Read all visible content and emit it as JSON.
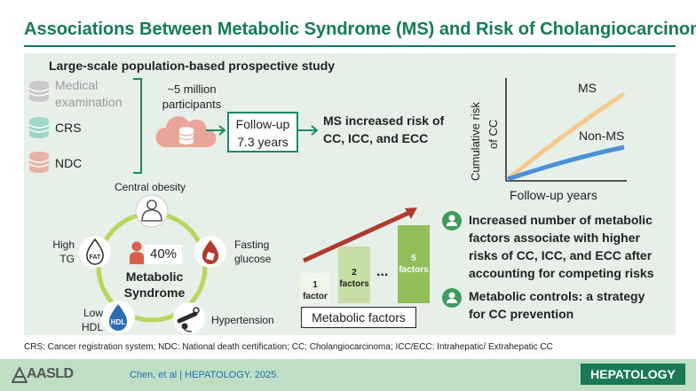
{
  "title": "Associations Between Metabolic Syndrome (MS) and Risk of Cholangiocarcinoma",
  "study": {
    "label": "Large-scale population-based prospective study",
    "sources": [
      "Medical examination",
      "CRS",
      "NDC"
    ],
    "participants": "~5 million participants",
    "followup": "Follow-up 7.3 years",
    "finding_line1": "MS increased risk of",
    "finding_line2": "CC, ICC, and ECC"
  },
  "chart": {
    "ylabel_line1": "Cumulative risk",
    "ylabel_line2": "of CC",
    "xlabel": "Follow-up years",
    "series_ms": "MS",
    "series_non_ms": "Non-MS",
    "color_ms": "#f3c98c",
    "color_non_ms": "#4a90d9"
  },
  "metabolic": {
    "components": [
      "Central obesity",
      "Fasting glucose",
      "Hypertension",
      "Low HDL",
      "High TG"
    ],
    "percent": "40%",
    "center_label": "Metabolic Syndrome",
    "hdl_icon_text": "HDL",
    "fat_icon_text": "FAT"
  },
  "factors": {
    "bars": [
      "1 factor",
      "2 factors",
      "...",
      "5 factors"
    ],
    "box_label": "Metabolic factors"
  },
  "outcomes": [
    "Increased number of metabolic factors associate with higher risks of CC, ICC, and ECC after accounting for competing risks",
    "Metabolic controls: a strategy for CC prevention"
  ],
  "footnote": "CRS: Cancer registration system; NDC: National death certification; CC: Cholangiocarcinoma; ICC/ECC: Intrahepatic/ Extrahepatic CC",
  "footer": {
    "brand": "AASLD",
    "citation": "Chen, et al  |  HEPATOLOGY. 2025.",
    "journal": "HEPATOLOGY"
  },
  "colors": {
    "title_green": "#16795a",
    "panel_bg": "#e6f0e8",
    "ring_green": "#b7d65c",
    "arrow_red": "#b03a2e",
    "footer_bg": "#bfdfc5"
  }
}
